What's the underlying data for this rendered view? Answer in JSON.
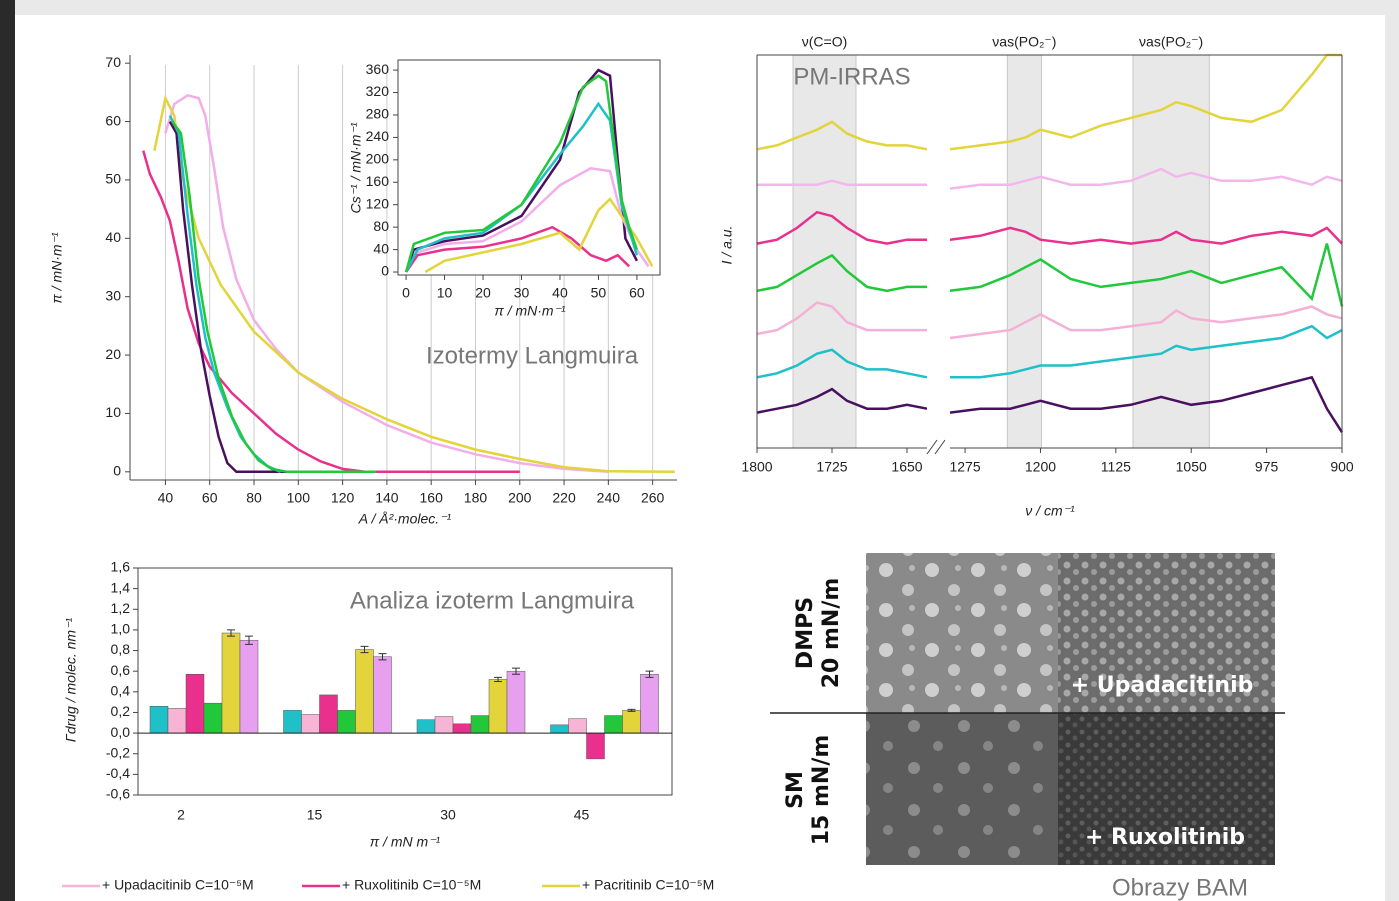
{
  "chart_data": [
    {
      "type": "line",
      "annotation": "Izotermy Langmuira",
      "x_label": "A / Å²·molec.⁻¹",
      "y_label": "π / mN·m⁻¹",
      "xlim": [
        24,
        271
      ],
      "ylim": [
        -1.4,
        71.4
      ],
      "xticks": [
        40,
        60,
        80,
        100,
        120,
        140,
        160,
        180,
        200,
        220,
        240,
        260
      ],
      "yticks": [
        0,
        10,
        20,
        30,
        40,
        50,
        60,
        70
      ],
      "grid": "x",
      "series": [
        {
          "color": "#e8308c",
          "x": [
            30,
            33,
            38,
            42,
            46,
            50,
            55,
            60,
            70,
            80,
            90,
            100,
            110,
            120,
            130,
            200
          ],
          "values": [
            55,
            51,
            47,
            43,
            36,
            28,
            22,
            18,
            13.5,
            10,
            6.5,
            3.8,
            1.8,
            0.5,
            0,
            0
          ]
        },
        {
          "color": "#f2aee8",
          "x": [
            40,
            44,
            50,
            55,
            58,
            62,
            66,
            72,
            80,
            90,
            100,
            120,
            140,
            160,
            180,
            200,
            220,
            240
          ],
          "values": [
            58,
            63,
            64.5,
            64,
            61,
            52,
            42,
            33,
            26,
            21,
            17,
            12,
            8,
            5,
            3,
            1.5,
            0.5,
            0
          ]
        },
        {
          "color": "#e2d43a",
          "x": [
            35,
            40,
            44,
            48,
            55,
            65,
            80,
            100,
            120,
            140,
            160,
            180,
            200,
            220,
            240,
            270
          ],
          "values": [
            55,
            64,
            61,
            50,
            40,
            32,
            24,
            17,
            12.5,
            9,
            6,
            3.8,
            2.2,
            0.8,
            0.1,
            0
          ]
        },
        {
          "color": "#4a1060",
          "x": [
            42,
            45,
            48,
            52,
            56,
            60,
            64,
            68,
            72,
            100
          ],
          "values": [
            60,
            58,
            45,
            32,
            21,
            13,
            6,
            1.5,
            0,
            0
          ]
        },
        {
          "color": "#1fc0c8",
          "x": [
            42,
            46,
            50,
            54,
            58,
            62,
            68,
            74,
            80,
            86,
            92
          ],
          "values": [
            61,
            58,
            44,
            32,
            23,
            17,
            11,
            6,
            3,
            1,
            0
          ]
        },
        {
          "color": "#22c83a",
          "x": [
            43,
            47,
            51,
            55,
            59,
            64,
            70,
            76,
            82,
            88,
            95,
            135
          ],
          "values": [
            60,
            58,
            47,
            33,
            24,
            16,
            9.5,
            5,
            2,
            0.5,
            0,
            0
          ]
        }
      ]
    },
    {
      "type": "line",
      "x_label": "π / mN·m⁻¹",
      "y_label": "Cs⁻¹ / mN·m⁻¹",
      "xlim": [
        -2.1,
        66
      ],
      "ylim": [
        -5.3,
        378
      ],
      "xticks": [
        0,
        10,
        20,
        30,
        40,
        50,
        60
      ],
      "yticks": [
        0,
        40,
        80,
        120,
        160,
        200,
        240,
        280,
        320,
        360
      ],
      "box": true,
      "series": [
        {
          "color": "#4a1060",
          "x": [
            0,
            2,
            10,
            20,
            30,
            40,
            45,
            50,
            53,
            55,
            57,
            60
          ],
          "values": [
            0,
            40,
            55,
            65,
            100,
            200,
            320,
            360,
            350,
            200,
            60,
            20
          ]
        },
        {
          "color": "#f2aee8",
          "x": [
            0,
            3,
            10,
            20,
            30,
            40,
            48,
            53,
            56,
            60,
            63
          ],
          "values": [
            0,
            35,
            50,
            55,
            90,
            155,
            185,
            180,
            100,
            40,
            10
          ]
        },
        {
          "color": "#e8308c",
          "x": [
            0,
            3,
            10,
            20,
            30,
            38,
            43,
            48,
            52,
            55,
            58
          ],
          "values": [
            0,
            30,
            40,
            45,
            60,
            80,
            60,
            30,
            20,
            30,
            10
          ]
        },
        {
          "color": "#e2d43a",
          "x": [
            5,
            10,
            20,
            30,
            40,
            45,
            50,
            53,
            56,
            60,
            64
          ],
          "values": [
            0,
            20,
            35,
            50,
            70,
            40,
            110,
            130,
            100,
            60,
            10
          ]
        },
        {
          "color": "#1fc0c8",
          "x": [
            0,
            3,
            10,
            20,
            30,
            40,
            46,
            50,
            53,
            56,
            60
          ],
          "values": [
            0,
            40,
            60,
            70,
            120,
            210,
            260,
            300,
            270,
            120,
            30
          ]
        },
        {
          "color": "#22c83a",
          "x": [
            0,
            2,
            10,
            20,
            30,
            40,
            46,
            50,
            52,
            56,
            58,
            60
          ],
          "values": [
            0,
            50,
            70,
            75,
            120,
            230,
            330,
            350,
            340,
            130,
            80,
            40
          ]
        }
      ]
    },
    {
      "type": "spectra",
      "annotation": "PM-IRRAS",
      "x_label": "ν / cm⁻¹",
      "y_label": "I / a.u.",
      "xlim": [
        1800,
        900
      ],
      "xbreak": [
        1630,
        1290
      ],
      "ylim": [
        0,
        100
      ],
      "xticks": [
        1800,
        1725,
        1650,
        1275,
        1200,
        1125,
        1050,
        975,
        900
      ],
      "bands": [
        {
          "range": [
            1764,
            1701
          ],
          "label": "ν(C=O)"
        },
        {
          "range": [
            1233,
            1199
          ],
          "label": "νas(PO₂⁻)"
        },
        {
          "range": [
            1108,
            1032
          ],
          "label": "νas(PO₂⁻)"
        }
      ],
      "x": [
        1800,
        1780,
        1760,
        1740,
        1725,
        1710,
        1690,
        1670,
        1650,
        1630,
        1290,
        1260,
        1230,
        1215,
        1200,
        1170,
        1140,
        1110,
        1080,
        1065,
        1050,
        1020,
        990,
        960,
        930,
        915,
        900
      ],
      "series": [
        {
          "color": "#e2d43a",
          "values": [
            76,
            77,
            79,
            81,
            83,
            80,
            78,
            77,
            77,
            76,
            76,
            77,
            78,
            79,
            81,
            79,
            82,
            84,
            86,
            88,
            87,
            84,
            83,
            86,
            95,
            100,
            100
          ]
        },
        {
          "color": "#f2b8ec",
          "values": [
            67,
            67,
            67,
            67,
            68,
            67,
            67,
            67,
            67,
            67,
            66,
            67,
            67,
            68,
            69,
            67,
            67,
            68,
            71,
            69,
            70,
            68,
            68,
            69,
            67,
            69,
            68
          ]
        },
        {
          "color": "#e8308c",
          "values": [
            52,
            53,
            56,
            60,
            59,
            56,
            53,
            52,
            53,
            53,
            53,
            54,
            56,
            55,
            53,
            52,
            53,
            52,
            53,
            55,
            53,
            52,
            54,
            55,
            54,
            56,
            52
          ]
        },
        {
          "color": "#22c83a",
          "values": [
            40,
            41,
            44,
            47,
            49,
            45,
            41,
            40,
            41,
            41,
            40,
            41,
            44,
            46,
            48,
            43,
            41,
            42,
            43,
            44,
            45,
            42,
            44,
            46,
            38,
            52,
            36
          ]
        },
        {
          "color": "#f5b0d6",
          "values": [
            29,
            30,
            33,
            37,
            36,
            32,
            30,
            30,
            30,
            30,
            28,
            29,
            30,
            32,
            34,
            30,
            30,
            31,
            32,
            35,
            33,
            32,
            33,
            34,
            36,
            34,
            33
          ]
        },
        {
          "color": "#1fc0c8",
          "values": [
            18,
            19,
            21,
            24,
            25,
            22,
            20,
            20,
            19,
            18,
            18,
            18,
            19,
            20,
            21,
            21,
            22,
            23,
            24,
            26,
            25,
            26,
            27,
            28,
            31,
            28,
            30
          ]
        },
        {
          "color": "#4a1060",
          "values": [
            9,
            10,
            11,
            13,
            15,
            12,
            10,
            10,
            11,
            10,
            9,
            10,
            10,
            11,
            12,
            10,
            10,
            11,
            13,
            12,
            11,
            12,
            14,
            16,
            18,
            10,
            4
          ]
        }
      ]
    },
    {
      "type": "bar",
      "annotation": "Analiza izoterm Langmuira",
      "x_label": "π / mN m⁻¹",
      "y_label": "Γdrug / molec. nm⁻¹",
      "categories": [
        "2",
        "15",
        "30",
        "45"
      ],
      "ylim": [
        -0.6,
        1.6
      ],
      "legend": "bottom",
      "yticks": [
        {
          "value": 1.6,
          "label": "1,6"
        },
        {
          "value": 1.4,
          "label": "1,4"
        },
        {
          "value": 1.2,
          "label": "1,2"
        },
        {
          "value": 1,
          "label": "1,0"
        },
        {
          "value": 0.8,
          "label": "0,8"
        },
        {
          "value": 0.6,
          "label": "0,6"
        },
        {
          "value": 0.4,
          "label": "0,4"
        },
        {
          "value": 0.2,
          "label": "0,2"
        },
        {
          "value": 0,
          "label": "0,0"
        },
        {
          "value": -0.2,
          "label": "-0,2"
        },
        {
          "value": -0.4,
          "label": "-0,4"
        },
        {
          "value": -0.6,
          "label": "-0,6"
        }
      ],
      "series": [
        {
          "color": "#1fc0c8",
          "values": [
            0.26,
            0.22,
            0.13,
            0.08
          ]
        },
        {
          "name": "+ Upadacitinib C=10⁻⁵M",
          "color": "#f8b4d4",
          "values": [
            0.24,
            0.18,
            0.16,
            0.14
          ]
        },
        {
          "name": "+ Ruxolitinib C=10⁻⁵M",
          "color": "#e8308c",
          "values": [
            0.57,
            0.37,
            0.09,
            -0.25
          ]
        },
        {
          "color": "#22c83a",
          "values": [
            0.29,
            0.22,
            0.17,
            0.17
          ]
        },
        {
          "name": "+ Pacritinib C=10⁻⁵M",
          "color": "#e2d43a",
          "values": [
            0.97,
            0.81,
            0.52,
            0.22
          ],
          "errors": [
            0.03,
            0.03,
            0.02,
            0.01
          ]
        },
        {
          "color": "#e6a0ef",
          "values": [
            0.9,
            0.74,
            0.6,
            0.57
          ],
          "errors": [
            0.04,
            0.03,
            0.03,
            0.03
          ]
        }
      ]
    }
  ],
  "bam": {
    "rows": [
      [
        "DMPS",
        "20 mN/m"
      ],
      [
        "SM",
        "15 mN/m"
      ]
    ],
    "overlays": [
      "+ Upadacitinib",
      "+ Ruxolitinib"
    ],
    "caption": "Obrazy BAM"
  }
}
